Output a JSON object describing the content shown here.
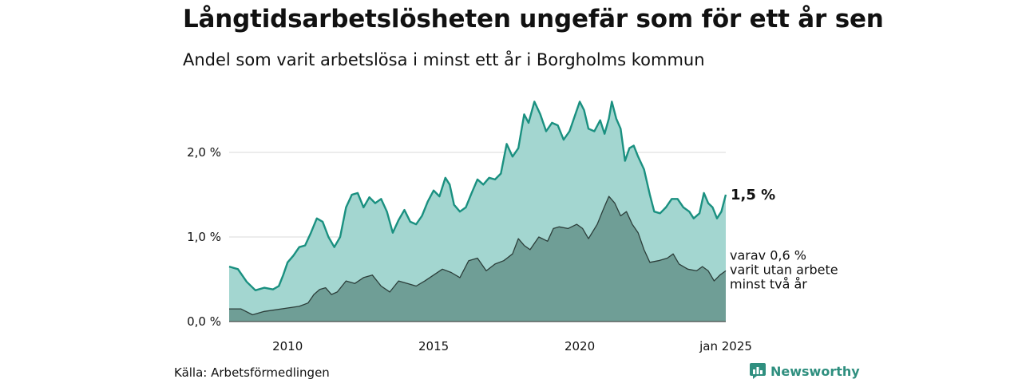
{
  "header": {
    "title": "Långtidsarbetslösheten ungefär som för ett år sen",
    "subtitle": "Andel som varit arbetslösa i minst ett år i Borgholms kommun"
  },
  "footer": {
    "source": "Källa: Arbetsförmedlingen",
    "brand": "Newsworthy",
    "brand_icon": "bar-chart-icon",
    "brand_color": "#2f8f7f"
  },
  "chart_data": {
    "type": "area",
    "title": "Långtidsarbetslösheten ungefär som för ett år sen",
    "subtitle": "Andel som varit arbetslösa i minst ett år i Borgholms kommun",
    "y_ticks": [
      0,
      1,
      2
    ],
    "y_tick_labels": [
      "0,0 %",
      "1,0 %",
      "2,0 %"
    ],
    "x_ticks": [
      2010,
      2015,
      2020,
      2025
    ],
    "x_tick_labels": [
      "2010",
      "2015",
      "2020",
      "jan 2025"
    ],
    "xlim": [
      2008.0,
      2025.0
    ],
    "ylim": [
      0,
      2.65
    ],
    "grid": true,
    "end_label": "1,5 %",
    "sub_label_lines": [
      "varav 0,6 %",
      "varit utan arbete",
      "minst två år"
    ],
    "colors": {
      "total_line": "#1a9080",
      "total_fill": "#a3d6d0",
      "long_line": "#2c3e3a",
      "long_fill": "#6f9e96",
      "grid": "#d9d9d9",
      "axis": "#333333"
    },
    "series": [
      {
        "key": "total",
        "points": [
          [
            2008.0,
            0.65
          ],
          [
            2008.3,
            0.62
          ],
          [
            2008.6,
            0.47
          ],
          [
            2008.9,
            0.37
          ],
          [
            2009.2,
            0.4
          ],
          [
            2009.5,
            0.38
          ],
          [
            2009.7,
            0.42
          ],
          [
            2009.85,
            0.55
          ],
          [
            2010.0,
            0.7
          ],
          [
            2010.2,
            0.78
          ],
          [
            2010.4,
            0.88
          ],
          [
            2010.6,
            0.9
          ],
          [
            2010.8,
            1.05
          ],
          [
            2011.0,
            1.22
          ],
          [
            2011.2,
            1.18
          ],
          [
            2011.4,
            1.0
          ],
          [
            2011.6,
            0.88
          ],
          [
            2011.8,
            1.0
          ],
          [
            2012.0,
            1.35
          ],
          [
            2012.2,
            1.5
          ],
          [
            2012.4,
            1.52
          ],
          [
            2012.6,
            1.35
          ],
          [
            2012.8,
            1.47
          ],
          [
            2013.0,
            1.4
          ],
          [
            2013.2,
            1.45
          ],
          [
            2013.4,
            1.3
          ],
          [
            2013.6,
            1.05
          ],
          [
            2013.8,
            1.2
          ],
          [
            2014.0,
            1.32
          ],
          [
            2014.2,
            1.18
          ],
          [
            2014.4,
            1.15
          ],
          [
            2014.6,
            1.25
          ],
          [
            2014.8,
            1.42
          ],
          [
            2015.0,
            1.55
          ],
          [
            2015.2,
            1.48
          ],
          [
            2015.4,
            1.7
          ],
          [
            2015.55,
            1.62
          ],
          [
            2015.7,
            1.38
          ],
          [
            2015.9,
            1.3
          ],
          [
            2016.1,
            1.35
          ],
          [
            2016.3,
            1.52
          ],
          [
            2016.5,
            1.68
          ],
          [
            2016.7,
            1.62
          ],
          [
            2016.9,
            1.7
          ],
          [
            2017.1,
            1.68
          ],
          [
            2017.3,
            1.75
          ],
          [
            2017.5,
            2.1
          ],
          [
            2017.7,
            1.95
          ],
          [
            2017.9,
            2.05
          ],
          [
            2018.1,
            2.45
          ],
          [
            2018.25,
            2.35
          ],
          [
            2018.45,
            2.6
          ],
          [
            2018.65,
            2.45
          ],
          [
            2018.85,
            2.25
          ],
          [
            2019.05,
            2.35
          ],
          [
            2019.25,
            2.32
          ],
          [
            2019.45,
            2.15
          ],
          [
            2019.65,
            2.25
          ],
          [
            2019.85,
            2.45
          ],
          [
            2020.0,
            2.6
          ],
          [
            2020.15,
            2.5
          ],
          [
            2020.3,
            2.28
          ],
          [
            2020.5,
            2.25
          ],
          [
            2020.7,
            2.38
          ],
          [
            2020.85,
            2.22
          ],
          [
            2021.0,
            2.4
          ],
          [
            2021.1,
            2.6
          ],
          [
            2021.25,
            2.4
          ],
          [
            2021.4,
            2.28
          ],
          [
            2021.55,
            1.9
          ],
          [
            2021.7,
            2.05
          ],
          [
            2021.85,
            2.08
          ],
          [
            2022.0,
            1.95
          ],
          [
            2022.2,
            1.8
          ],
          [
            2022.4,
            1.5
          ],
          [
            2022.55,
            1.3
          ],
          [
            2022.75,
            1.28
          ],
          [
            2022.95,
            1.35
          ],
          [
            2023.15,
            1.45
          ],
          [
            2023.35,
            1.45
          ],
          [
            2023.55,
            1.35
          ],
          [
            2023.75,
            1.3
          ],
          [
            2023.9,
            1.22
          ],
          [
            2024.1,
            1.28
          ],
          [
            2024.25,
            1.52
          ],
          [
            2024.4,
            1.4
          ],
          [
            2024.55,
            1.35
          ],
          [
            2024.7,
            1.22
          ],
          [
            2024.85,
            1.3
          ],
          [
            2025.0,
            1.5
          ]
        ]
      },
      {
        "key": "long",
        "points": [
          [
            2008.0,
            0.15
          ],
          [
            2008.4,
            0.15
          ],
          [
            2008.8,
            0.08
          ],
          [
            2009.2,
            0.12
          ],
          [
            2009.6,
            0.14
          ],
          [
            2010.0,
            0.16
          ],
          [
            2010.4,
            0.18
          ],
          [
            2010.7,
            0.22
          ],
          [
            2010.9,
            0.32
          ],
          [
            2011.1,
            0.38
          ],
          [
            2011.3,
            0.4
          ],
          [
            2011.5,
            0.32
          ],
          [
            2011.7,
            0.35
          ],
          [
            2012.0,
            0.48
          ],
          [
            2012.3,
            0.45
          ],
          [
            2012.6,
            0.52
          ],
          [
            2012.9,
            0.55
          ],
          [
            2013.2,
            0.42
          ],
          [
            2013.5,
            0.35
          ],
          [
            2013.8,
            0.48
          ],
          [
            2014.1,
            0.45
          ],
          [
            2014.4,
            0.42
          ],
          [
            2014.7,
            0.48
          ],
          [
            2015.0,
            0.55
          ],
          [
            2015.3,
            0.62
          ],
          [
            2015.6,
            0.58
          ],
          [
            2015.9,
            0.52
          ],
          [
            2016.2,
            0.72
          ],
          [
            2016.5,
            0.75
          ],
          [
            2016.8,
            0.6
          ],
          [
            2017.1,
            0.68
          ],
          [
            2017.4,
            0.72
          ],
          [
            2017.7,
            0.8
          ],
          [
            2017.9,
            0.98
          ],
          [
            2018.1,
            0.9
          ],
          [
            2018.3,
            0.85
          ],
          [
            2018.6,
            1.0
          ],
          [
            2018.9,
            0.95
          ],
          [
            2019.1,
            1.1
          ],
          [
            2019.3,
            1.12
          ],
          [
            2019.6,
            1.1
          ],
          [
            2019.9,
            1.15
          ],
          [
            2020.1,
            1.1
          ],
          [
            2020.3,
            0.98
          ],
          [
            2020.6,
            1.15
          ],
          [
            2020.8,
            1.32
          ],
          [
            2021.0,
            1.48
          ],
          [
            2021.2,
            1.4
          ],
          [
            2021.4,
            1.25
          ],
          [
            2021.6,
            1.3
          ],
          [
            2021.8,
            1.15
          ],
          [
            2022.0,
            1.05
          ],
          [
            2022.2,
            0.85
          ],
          [
            2022.4,
            0.7
          ],
          [
            2022.7,
            0.72
          ],
          [
            2023.0,
            0.75
          ],
          [
            2023.2,
            0.8
          ],
          [
            2023.4,
            0.68
          ],
          [
            2023.7,
            0.62
          ],
          [
            2024.0,
            0.6
          ],
          [
            2024.2,
            0.65
          ],
          [
            2024.4,
            0.6
          ],
          [
            2024.6,
            0.48
          ],
          [
            2024.8,
            0.55
          ],
          [
            2025.0,
            0.6
          ]
        ]
      }
    ]
  }
}
